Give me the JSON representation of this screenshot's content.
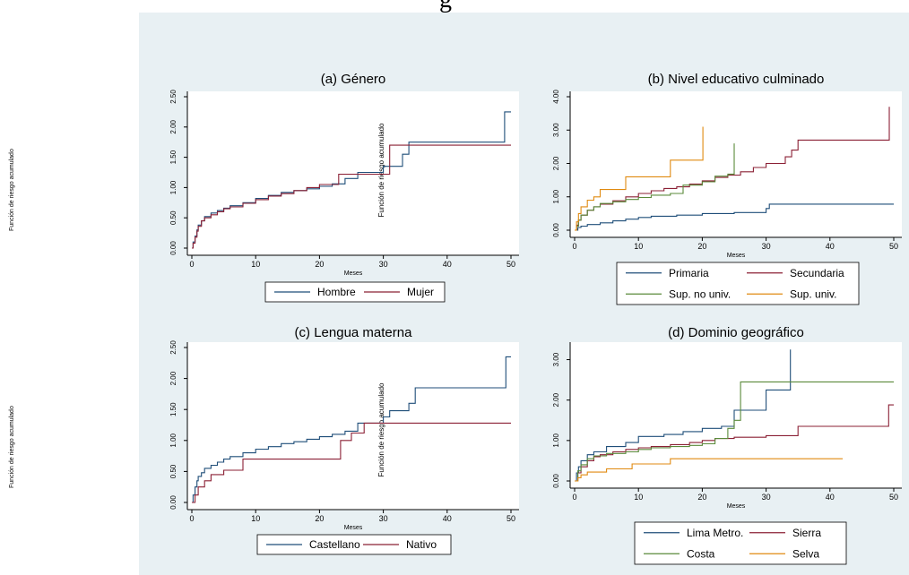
{
  "page": {
    "top_text": "g"
  },
  "side_labels": [
    "Función de riesgo acumulado",
    "Función de riesgo acumulado"
  ],
  "colors": {
    "background": "#e8f0f3",
    "navy": "#1f4e79",
    "maroon": "#8b2035",
    "green": "#5a8a3a",
    "orange": "#e08a10"
  },
  "chart_data": [
    {
      "type": "line",
      "title": "(a) Género",
      "xlabel": "Meses",
      "ylabel": "Función de riesgo acumulado",
      "xlim": [
        0,
        50
      ],
      "ylim": [
        0,
        2.5
      ],
      "xticks": [
        "0",
        "10",
        "20",
        "30",
        "40",
        "50"
      ],
      "yticks": [
        "0.00",
        "0.50",
        "1.00",
        "1.50",
        "2.00",
        "2.50"
      ],
      "legend_position": "bottom",
      "series": [
        {
          "name": "Hombre",
          "color": "#1f4e79",
          "points": [
            [
              0,
              0
            ],
            [
              0.2,
              0.1
            ],
            [
              0.5,
              0.2
            ],
            [
              0.8,
              0.3
            ],
            [
              1,
              0.38
            ],
            [
              1.5,
              0.45
            ],
            [
              2,
              0.52
            ],
            [
              3,
              0.58
            ],
            [
              4,
              0.62
            ],
            [
              5,
              0.66
            ],
            [
              6,
              0.7
            ],
            [
              8,
              0.75
            ],
            [
              10,
              0.82
            ],
            [
              12,
              0.87
            ],
            [
              14,
              0.92
            ],
            [
              16,
              0.95
            ],
            [
              18,
              0.98
            ],
            [
              20,
              1.02
            ],
            [
              22,
              1.06
            ],
            [
              24,
              1.15
            ],
            [
              26,
              1.25
            ],
            [
              30,
              1.35
            ],
            [
              33,
              1.55
            ],
            [
              34,
              1.75
            ],
            [
              49,
              2.25
            ],
            [
              50,
              2.25
            ]
          ]
        },
        {
          "name": "Mujer",
          "color": "#8b2035",
          "points": [
            [
              0,
              0
            ],
            [
              0.2,
              0.08
            ],
            [
              0.5,
              0.18
            ],
            [
              0.8,
              0.28
            ],
            [
              1,
              0.36
            ],
            [
              1.5,
              0.45
            ],
            [
              2,
              0.5
            ],
            [
              3,
              0.55
            ],
            [
              4,
              0.6
            ],
            [
              5,
              0.65
            ],
            [
              6,
              0.68
            ],
            [
              8,
              0.74
            ],
            [
              10,
              0.8
            ],
            [
              12,
              0.86
            ],
            [
              14,
              0.9
            ],
            [
              16,
              0.95
            ],
            [
              18,
              1.0
            ],
            [
              20,
              1.05
            ],
            [
              23,
              1.22
            ],
            [
              30,
              1.22
            ],
            [
              31,
              1.7
            ],
            [
              50,
              1.7
            ]
          ]
        }
      ]
    },
    {
      "type": "line",
      "title": "(b) Nivel educativo culminado",
      "xlabel": "Meses",
      "ylabel": "",
      "xlim": [
        0,
        50
      ],
      "ylim": [
        0,
        4
      ],
      "xticks": [
        "0",
        "10",
        "20",
        "30",
        "40",
        "50"
      ],
      "yticks": [
        "0.00",
        "1.00",
        "2.00",
        "3.00",
        "4.00"
      ],
      "legend_position": "bottom",
      "series": [
        {
          "name": "Primaria",
          "color": "#1f4e79",
          "points": [
            [
              0,
              0
            ],
            [
              0.5,
              0.08
            ],
            [
              1,
              0.12
            ],
            [
              2,
              0.17
            ],
            [
              4,
              0.22
            ],
            [
              6,
              0.28
            ],
            [
              8,
              0.33
            ],
            [
              10,
              0.38
            ],
            [
              12,
              0.42
            ],
            [
              16,
              0.45
            ],
            [
              20,
              0.5
            ],
            [
              25,
              0.53
            ],
            [
              30,
              0.65
            ],
            [
              30.5,
              0.78
            ],
            [
              50,
              0.78
            ]
          ]
        },
        {
          "name": "Secundaria",
          "color": "#8b2035",
          "points": [
            [
              0,
              0
            ],
            [
              0.3,
              0.15
            ],
            [
              0.6,
              0.3
            ],
            [
              1,
              0.45
            ],
            [
              2,
              0.6
            ],
            [
              3,
              0.7
            ],
            [
              4,
              0.78
            ],
            [
              6,
              0.88
            ],
            [
              8,
              1.0
            ],
            [
              10,
              1.1
            ],
            [
              12,
              1.18
            ],
            [
              14,
              1.25
            ],
            [
              16,
              1.3
            ],
            [
              18,
              1.38
            ],
            [
              20,
              1.48
            ],
            [
              22,
              1.58
            ],
            [
              24,
              1.65
            ],
            [
              26,
              1.75
            ],
            [
              28,
              1.88
            ],
            [
              30,
              2.0
            ],
            [
              33,
              2.2
            ],
            [
              34,
              2.4
            ],
            [
              35,
              2.7
            ],
            [
              49,
              2.7
            ],
            [
              49.3,
              3.7
            ]
          ]
        },
        {
          "name": "Sup. no univ.",
          "color": "#5a8a3a",
          "points": [
            [
              0,
              0
            ],
            [
              0.3,
              0.12
            ],
            [
              0.6,
              0.3
            ],
            [
              1,
              0.45
            ],
            [
              2,
              0.6
            ],
            [
              3,
              0.7
            ],
            [
              4,
              0.8
            ],
            [
              6,
              0.85
            ],
            [
              8,
              0.92
            ],
            [
              10,
              0.98
            ],
            [
              12,
              1.05
            ],
            [
              15,
              1.1
            ],
            [
              17,
              1.35
            ],
            [
              20,
              1.45
            ],
            [
              22,
              1.62
            ],
            [
              24,
              1.68
            ],
            [
              25,
              2.6
            ]
          ]
        },
        {
          "name": "Sup. univ.",
          "color": "#e08a10",
          "points": [
            [
              0,
              0
            ],
            [
              0.3,
              0.25
            ],
            [
              0.6,
              0.5
            ],
            [
              1,
              0.7
            ],
            [
              2,
              0.9
            ],
            [
              3,
              1.0
            ],
            [
              4,
              1.22
            ],
            [
              8,
              1.6
            ],
            [
              15,
              2.1
            ],
            [
              20,
              2.1
            ],
            [
              20.1,
              3.1
            ]
          ]
        }
      ]
    },
    {
      "type": "line",
      "title": "(c) Lengua materna",
      "xlabel": "Meses",
      "ylabel": "Función de riesgo acumulado",
      "xlim": [
        0,
        50
      ],
      "ylim": [
        0,
        2.5
      ],
      "xticks": [
        "0",
        "10",
        "20",
        "30",
        "40",
        "50"
      ],
      "yticks": [
        "0.00",
        "0.50",
        "1.00",
        "1.50",
        "2.00",
        "2.50"
      ],
      "legend_position": "bottom",
      "series": [
        {
          "name": "Castellano",
          "color": "#1f4e79",
          "points": [
            [
              0,
              0
            ],
            [
              0.2,
              0.12
            ],
            [
              0.5,
              0.25
            ],
            [
              0.8,
              0.35
            ],
            [
              1,
              0.42
            ],
            [
              1.5,
              0.48
            ],
            [
              2,
              0.55
            ],
            [
              3,
              0.6
            ],
            [
              4,
              0.65
            ],
            [
              5,
              0.7
            ],
            [
              6,
              0.74
            ],
            [
              8,
              0.8
            ],
            [
              10,
              0.86
            ],
            [
              12,
              0.9
            ],
            [
              14,
              0.95
            ],
            [
              16,
              0.98
            ],
            [
              18,
              1.02
            ],
            [
              20,
              1.06
            ],
            [
              22,
              1.1
            ],
            [
              24,
              1.15
            ],
            [
              26,
              1.28
            ],
            [
              30,
              1.38
            ],
            [
              31,
              1.48
            ],
            [
              34,
              1.6
            ],
            [
              35,
              1.85
            ],
            [
              49,
              1.85
            ],
            [
              49.2,
              2.35
            ],
            [
              50,
              2.35
            ]
          ]
        },
        {
          "name": "Nativo",
          "color": "#8b2035",
          "points": [
            [
              0,
              0
            ],
            [
              0.5,
              0.12
            ],
            [
              1,
              0.25
            ],
            [
              2,
              0.35
            ],
            [
              3,
              0.45
            ],
            [
              5,
              0.52
            ],
            [
              8,
              0.7
            ],
            [
              23,
              0.7
            ],
            [
              23.3,
              1.0
            ],
            [
              25,
              1.12
            ],
            [
              27,
              1.28
            ],
            [
              50,
              1.28
            ]
          ]
        }
      ]
    },
    {
      "type": "line",
      "title": "(d) Dominio geográfico",
      "xlabel": "Meses",
      "ylabel": "",
      "xlim": [
        0,
        50
      ],
      "ylim": [
        0,
        3.3
      ],
      "xticks": [
        "0",
        "10",
        "20",
        "30",
        "40",
        "50"
      ],
      "yticks": [
        "0.00",
        "1.00",
        "2.00",
        "3.00"
      ],
      "legend_position": "bottom",
      "series": [
        {
          "name": "Lima Metro.",
          "color": "#1f4e79",
          "points": [
            [
              0,
              0
            ],
            [
              0.3,
              0.2
            ],
            [
              0.6,
              0.35
            ],
            [
              1,
              0.5
            ],
            [
              2,
              0.65
            ],
            [
              3,
              0.72
            ],
            [
              5,
              0.85
            ],
            [
              8,
              0.95
            ],
            [
              10,
              1.1
            ],
            [
              14,
              1.15
            ],
            [
              17,
              1.22
            ],
            [
              20,
              1.3
            ],
            [
              23,
              1.35
            ],
            [
              25,
              1.75
            ],
            [
              30,
              2.25
            ],
            [
              33,
              2.25
            ],
            [
              33.8,
              3.25
            ]
          ]
        },
        {
          "name": "Sierra",
          "color": "#8b2035",
          "points": [
            [
              0,
              0
            ],
            [
              0.5,
              0.2
            ],
            [
              1,
              0.35
            ],
            [
              2,
              0.5
            ],
            [
              3,
              0.6
            ],
            [
              4,
              0.65
            ],
            [
              6,
              0.72
            ],
            [
              8,
              0.78
            ],
            [
              10,
              0.82
            ],
            [
              12,
              0.85
            ],
            [
              15,
              0.9
            ],
            [
              18,
              0.95
            ],
            [
              20,
              1.0
            ],
            [
              22,
              1.05
            ],
            [
              25,
              1.08
            ],
            [
              30,
              1.12
            ],
            [
              35,
              1.35
            ],
            [
              49,
              1.35
            ],
            [
              49.2,
              1.88
            ],
            [
              50,
              1.88
            ]
          ]
        },
        {
          "name": "Costa",
          "color": "#5a8a3a",
          "points": [
            [
              0,
              0
            ],
            [
              0.5,
              0.25
            ],
            [
              1,
              0.4
            ],
            [
              2,
              0.55
            ],
            [
              3,
              0.62
            ],
            [
              5,
              0.68
            ],
            [
              8,
              0.72
            ],
            [
              10,
              0.78
            ],
            [
              12,
              0.82
            ],
            [
              15,
              0.85
            ],
            [
              18,
              0.88
            ],
            [
              20,
              0.92
            ],
            [
              22,
              1.05
            ],
            [
              24,
              1.3
            ],
            [
              25,
              1.5
            ],
            [
              26,
              2.45
            ],
            [
              50,
              2.45
            ]
          ]
        },
        {
          "name": "Selva",
          "color": "#e08a10",
          "points": [
            [
              0,
              0
            ],
            [
              0.5,
              0.08
            ],
            [
              1,
              0.15
            ],
            [
              2,
              0.22
            ],
            [
              5,
              0.3
            ],
            [
              9,
              0.42
            ],
            [
              15,
              0.55
            ],
            [
              42,
              0.55
            ]
          ]
        }
      ]
    }
  ]
}
